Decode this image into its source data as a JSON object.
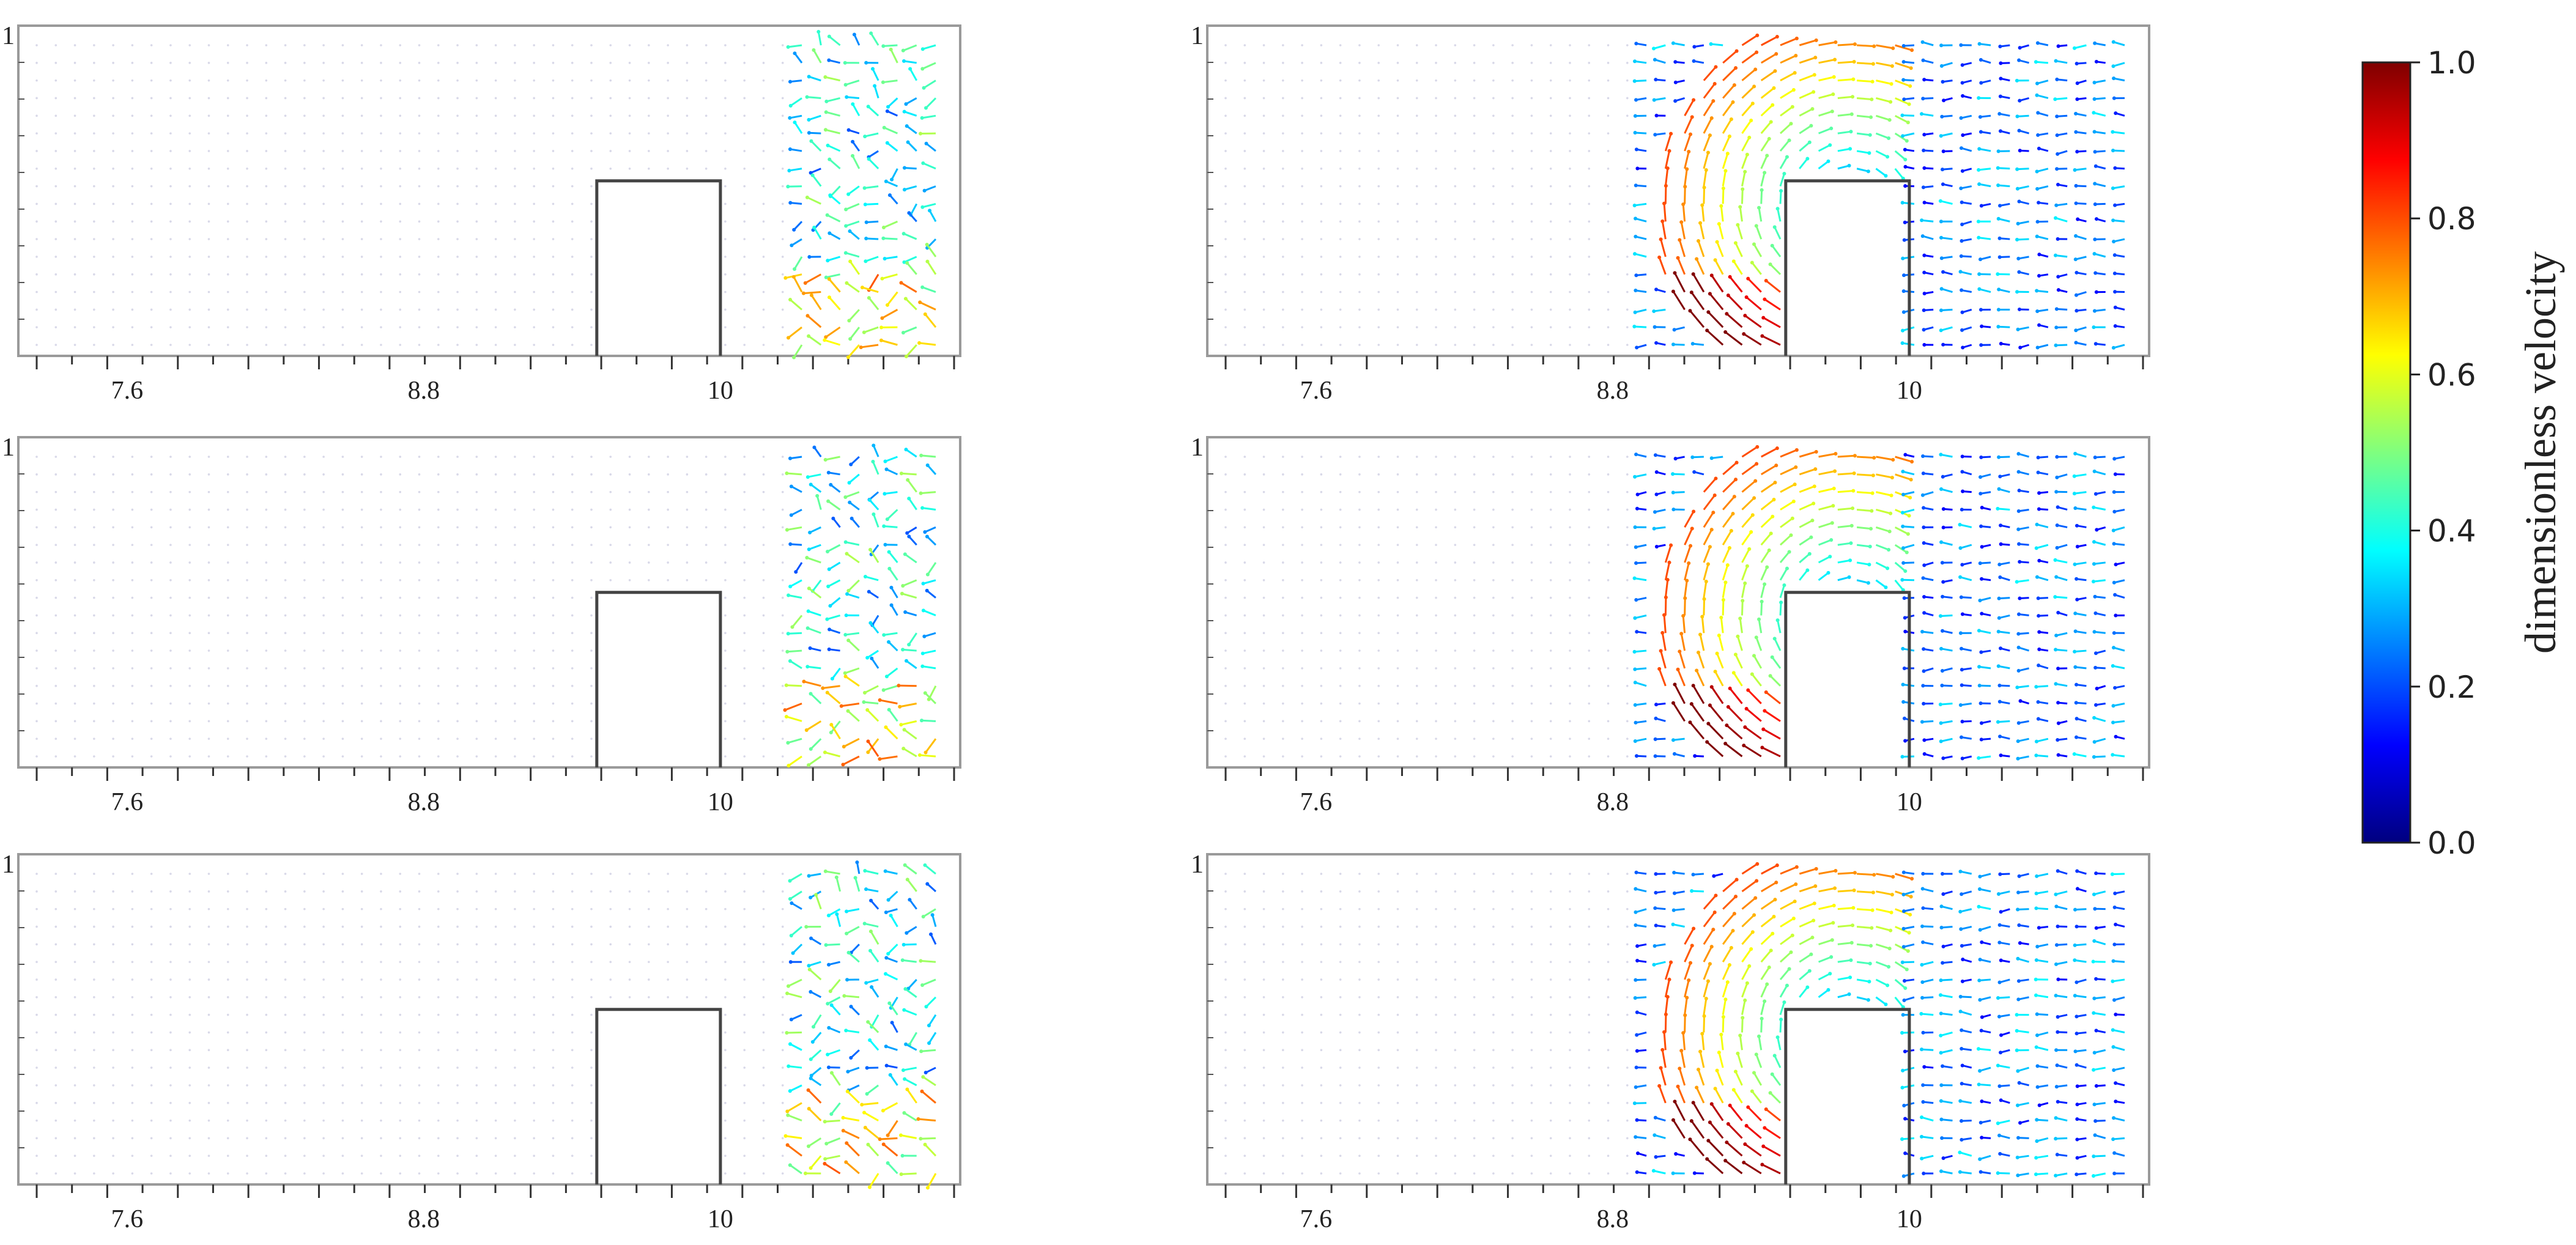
{
  "colorbar": {
    "label": "dimensionless velocity",
    "ticks": [
      "1.0",
      "0.8",
      "0.6",
      "0.4",
      "0.2",
      "0.0"
    ],
    "range": [
      0,
      1
    ],
    "colormap": [
      "#00007f",
      "#0000ff",
      "#007fff",
      "#00ffff",
      "#7fff7f",
      "#ffff00",
      "#ff7f00",
      "#ff0000",
      "#7f0000"
    ]
  },
  "chart_data": [
    {
      "type": "vector_field",
      "panel": "left-top",
      "xticks": [
        "7.6",
        "8.8",
        "10"
      ],
      "ytick": "1",
      "obstacle_x": [
        9.5,
        10.0
      ],
      "vortex": false
    },
    {
      "type": "vector_field",
      "panel": "right-top",
      "xticks": [
        "7.6",
        "8.8",
        "10"
      ],
      "ytick": "1",
      "obstacle_x": [
        9.5,
        10.0
      ],
      "vortex": true
    },
    {
      "type": "vector_field",
      "panel": "left-middle",
      "xticks": [
        "7.6",
        "8.8",
        "10"
      ],
      "ytick": "1",
      "obstacle_x": [
        9.5,
        10.0
      ],
      "vortex": false
    },
    {
      "type": "vector_field",
      "panel": "right-middle",
      "xticks": [
        "7.6",
        "8.8",
        "10"
      ],
      "ytick": "1",
      "obstacle_x": [
        9.5,
        10.0
      ],
      "vortex": true
    },
    {
      "type": "vector_field",
      "panel": "left-bottom",
      "xticks": [
        "7.6",
        "8.8",
        "10"
      ],
      "ytick": "1",
      "obstacle_x": [
        9.5,
        10.0
      ],
      "vortex": false
    },
    {
      "type": "vector_field",
      "panel": "right-bottom",
      "xticks": [
        "7.6",
        "8.8",
        "10"
      ],
      "ytick": "1",
      "obstacle_x": [
        9.5,
        10.0
      ],
      "vortex": true
    }
  ]
}
